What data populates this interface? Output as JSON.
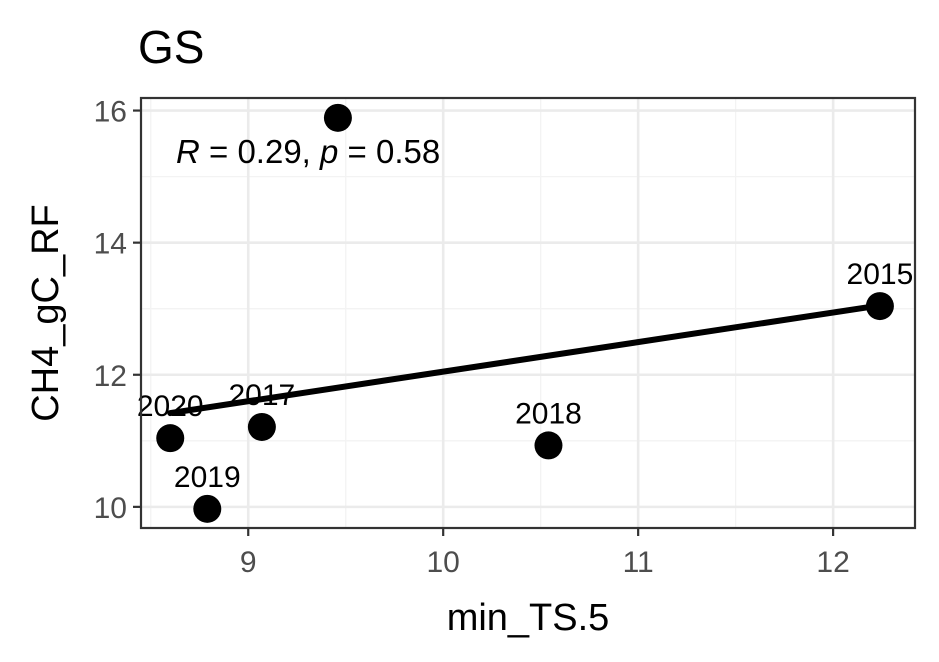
{
  "chart_data": {
    "type": "scatter",
    "title": "GS",
    "xlabel": "min_TS.5",
    "ylabel": "CH4_gC_RF",
    "xlim": [
      8.45,
      12.42
    ],
    "ylim": [
      9.68,
      16.19
    ],
    "x_ticks": [
      9,
      10,
      11,
      12
    ],
    "y_ticks": [
      10,
      12,
      14,
      16
    ],
    "grid": true,
    "annotation": {
      "r_symbol": "R",
      "r_text": " = 0.29, ",
      "p_symbol": "p",
      "p_text": " = 0.58"
    },
    "points": [
      {
        "x": 12.24,
        "y": 13.04,
        "label": "2015"
      },
      {
        "x": 9.46,
        "y": 15.89,
        "label": ""
      },
      {
        "x": 9.07,
        "y": 11.21,
        "label": "2017"
      },
      {
        "x": 10.54,
        "y": 10.93,
        "label": "2018"
      },
      {
        "x": 8.79,
        "y": 9.97,
        "label": "2019"
      },
      {
        "x": 8.6,
        "y": 11.04,
        "label": "2020"
      }
    ],
    "fit_line": {
      "x": [
        8.6,
        12.24
      ],
      "y": [
        11.42,
        13.05
      ]
    },
    "colors": {
      "points": "#000000",
      "fit_line": "#000000"
    }
  }
}
